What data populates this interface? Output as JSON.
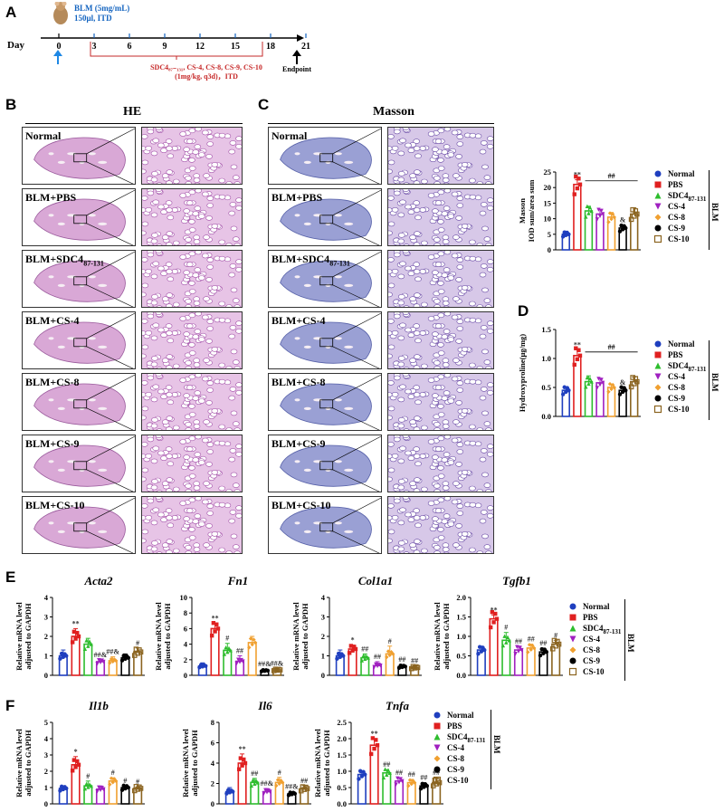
{
  "panel_labels": {
    "A": "A",
    "B": "B",
    "C": "C",
    "D": "D",
    "E": "E",
    "F": "F"
  },
  "timeline": {
    "day_label": "Day",
    "ticks": [
      "0",
      "3",
      "6",
      "9",
      "12",
      "15",
      "18",
      "21"
    ],
    "blm_dose": "BLM (5mg/mL)",
    "blm_vol": "150μl, ITD",
    "treat_line1": "SDC4₈₇₋₁₃₁, CS-4, CS-8, CS-9, CS-10",
    "treat_line2": "(1mg/kg, q3d)，ITD",
    "endpoint": "Endpoint"
  },
  "he_header": "HE",
  "masson_header": "Masson",
  "rows": [
    {
      "label": "Normal"
    },
    {
      "label": "BLM+PBS"
    },
    {
      "label": "BLM+SDC4",
      "sub": "87-131"
    },
    {
      "label": "BLM+CS-4"
    },
    {
      "label": "BLM+CS-8"
    },
    {
      "label": "BLM+CS-9"
    },
    {
      "label": "BLM+CS-10"
    }
  ],
  "legend": [
    {
      "name": "Normal",
      "color": "#1f3fbf",
      "shape": "circle"
    },
    {
      "name": "PBS",
      "color": "#e02020",
      "shape": "square"
    },
    {
      "name": "SDC4",
      "sub": "87-131",
      "color": "#2ebd2e",
      "shape": "triangle"
    },
    {
      "name": "CS-4",
      "color": "#a020c0",
      "shape": "tri-down"
    },
    {
      "name": "CS-8",
      "color": "#f0a030",
      "shape": "diamond"
    },
    {
      "name": "CS-9",
      "color": "#000000",
      "shape": "circle"
    },
    {
      "name": "CS-10",
      "color": "#8b6420",
      "shape": "square-open"
    }
  ],
  "blm_label": "BLM",
  "chart_data": [
    {
      "id": "C",
      "type": "bar",
      "ylabel": "Masson\nIOD sum/area sum",
      "ylim": [
        0,
        25
      ],
      "yticks": [
        0,
        5,
        10,
        15,
        20,
        25
      ],
      "values": [
        5,
        21,
        12.5,
        11.5,
        10.5,
        7,
        11.5
      ],
      "errors": [
        1,
        1.5,
        1.5,
        1.5,
        1.5,
        1,
        2
      ],
      "annotations": [
        "",
        "**",
        "",
        "",
        "",
        "&",
        ""
      ],
      "bracket": "##"
    },
    {
      "id": "D",
      "type": "bar",
      "ylabel": "Hydroxyproline(μg/mg)",
      "ylim": [
        0,
        1.5
      ],
      "yticks": [
        0.0,
        0.5,
        1.0,
        1.5
      ],
      "values": [
        0.45,
        1.05,
        0.6,
        0.58,
        0.5,
        0.45,
        0.6
      ],
      "errors": [
        0.05,
        0.1,
        0.1,
        0.08,
        0.05,
        0.05,
        0.08
      ],
      "annotations": [
        "",
        "**",
        "",
        "",
        "",
        "&",
        ""
      ],
      "bracket": "##"
    },
    {
      "id": "Acta2",
      "title": "Acta2",
      "type": "bar",
      "ylabel": "Relative mRNA level\nadjusted to GAPDH",
      "ylim": [
        0,
        4
      ],
      "yticks": [
        0,
        1,
        2,
        3,
        4
      ],
      "values": [
        1,
        2,
        1.6,
        0.7,
        0.75,
        0.9,
        1.2
      ],
      "errors": [
        0.3,
        0.4,
        0.3,
        0.1,
        0.2,
        0.2,
        0.2
      ],
      "annotations": [
        "",
        "**",
        "",
        "##&",
        "##&",
        "",
        "#"
      ]
    },
    {
      "id": "Fn1",
      "title": "Fn1",
      "type": "bar",
      "ylabel": "Relative mRNA level\nadjusted to GAPDH",
      "ylim": [
        0,
        10
      ],
      "yticks": [
        0,
        2,
        4,
        6,
        8,
        10
      ],
      "values": [
        1.2,
        6,
        3.2,
        1.8,
        4.2,
        0.6,
        0.7
      ],
      "errors": [
        0.4,
        0.7,
        0.9,
        0.7,
        0.8,
        0.2,
        0.2
      ],
      "annotations": [
        "",
        "**",
        "#",
        "##",
        "",
        "##&",
        "##&"
      ]
    },
    {
      "id": "Col1a1",
      "title": "Col1a1",
      "type": "bar",
      "ylabel": "Relative mRNA level\nadjusted to GAPDH",
      "ylim": [
        0,
        4
      ],
      "yticks": [
        0,
        1,
        2,
        3,
        4
      ],
      "values": [
        1,
        1.35,
        0.9,
        0.5,
        1.1,
        0.45,
        0.4
      ],
      "errors": [
        0.3,
        0.2,
        0.2,
        0.2,
        0.4,
        0.1,
        0.1
      ],
      "annotations": [
        "",
        "*",
        "##",
        "##",
        "#",
        "##",
        "##"
      ]
    },
    {
      "id": "Tgfb1",
      "title": "Tgfb1",
      "type": "bar",
      "ylabel": "Relative mRNA level\nadjusted to GAPDH",
      "ylim": [
        0,
        2.0
      ],
      "yticks": [
        0.0,
        0.5,
        1.0,
        1.5,
        2.0
      ],
      "values": [
        0.65,
        1.45,
        0.9,
        0.65,
        0.7,
        0.6,
        0.8
      ],
      "errors": [
        0.1,
        0.1,
        0.2,
        0.1,
        0.1,
        0.1,
        0.1
      ],
      "annotations": [
        "",
        "**",
        "#",
        "##",
        "##",
        "##",
        "#"
      ]
    },
    {
      "id": "Il1b",
      "title": "Il1b",
      "type": "bar",
      "ylabel": "Relative mRNA level\nadjusted to GAPDH",
      "ylim": [
        0,
        5
      ],
      "yticks": [
        0,
        1,
        2,
        3,
        4,
        5
      ],
      "values": [
        0.95,
        2.4,
        1.1,
        0.9,
        1.4,
        1.0,
        0.95
      ],
      "errors": [
        0.1,
        0.5,
        0.3,
        0.2,
        0.2,
        0.1,
        0.1
      ],
      "annotations": [
        "",
        "*",
        "#",
        "",
        "#",
        "#",
        "#"
      ]
    },
    {
      "id": "Il6",
      "title": "Il6",
      "type": "bar",
      "ylabel": "Relative mRNA level\nadjusted to GAPDH",
      "ylim": [
        0,
        8
      ],
      "yticks": [
        0,
        2,
        4,
        6,
        8
      ],
      "values": [
        1.2,
        4,
        2.1,
        1.2,
        2.1,
        1.0,
        1.5
      ],
      "errors": [
        0.4,
        0.9,
        0.4,
        0.3,
        0.5,
        0.2,
        0.3
      ],
      "annotations": [
        "",
        "**",
        "##",
        "##&",
        "#",
        "##&",
        "##"
      ]
    },
    {
      "id": "Tnfa",
      "title": "Tnfa",
      "type": "bar",
      "ylabel": "Relative mRNA level\nadjusted to GAPDH",
      "ylim": [
        0,
        2.5
      ],
      "yticks": [
        0.0,
        0.5,
        1.0,
        1.5,
        2.0,
        2.5
      ],
      "values": [
        0.9,
        1.8,
        0.95,
        0.7,
        0.65,
        0.55,
        0.65
      ],
      "errors": [
        0.05,
        0.2,
        0.1,
        0.1,
        0.1,
        0.1,
        0.15
      ],
      "annotations": [
        "",
        "**",
        "##",
        "##",
        "##",
        "##",
        "##"
      ]
    }
  ]
}
